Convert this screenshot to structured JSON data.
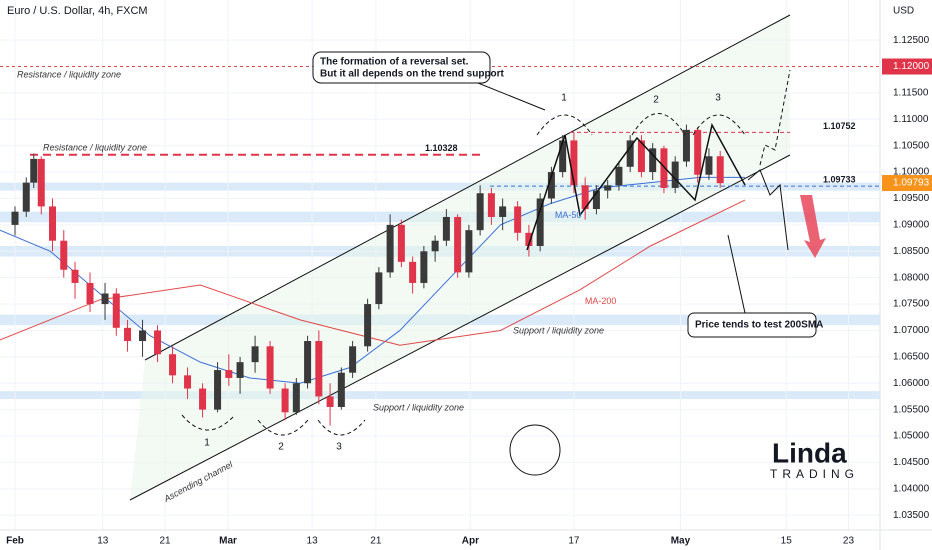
{
  "chart_data": {
    "type": "candlestick",
    "title": "Euro / U.S. Dollar, 4h, FXCM",
    "axis_label": "USD",
    "up_color": "#3a3a3a",
    "down_color": "#e0344a",
    "xlim": [
      -2,
      115.3
    ],
    "ylim": [
      1.0322,
      1.1326
    ],
    "xticks": [
      {
        "value": 0,
        "label": "Feb"
      },
      {
        "value": 11.7,
        "label": "13"
      },
      {
        "value": 20,
        "label": "21"
      },
      {
        "value": 28.4,
        "label": "Mar"
      },
      {
        "value": 39.6,
        "label": "13"
      },
      {
        "value": 48.1,
        "label": "21"
      },
      {
        "value": 60.7,
        "label": "Apr"
      },
      {
        "value": 74.5,
        "label": "17"
      },
      {
        "value": 88.7,
        "label": "May"
      },
      {
        "value": 102.8,
        "label": "15"
      },
      {
        "value": 111.1,
        "label": "23"
      }
    ],
    "yticks": [
      {
        "value": 1.035,
        "label": "1.03500"
      },
      {
        "value": 1.04,
        "label": "1.04000"
      },
      {
        "value": 1.045,
        "label": "1.04500"
      },
      {
        "value": 1.05,
        "label": "1.05000"
      },
      {
        "value": 1.055,
        "label": "1.05500"
      },
      {
        "value": 1.06,
        "label": "1.06000"
      },
      {
        "value": 1.065,
        "label": "1.06500"
      },
      {
        "value": 1.07,
        "label": "1.07000"
      },
      {
        "value": 1.075,
        "label": "1.07500"
      },
      {
        "value": 1.08,
        "label": "1.08000"
      },
      {
        "value": 1.085,
        "label": "1.08500"
      },
      {
        "value": 1.09,
        "label": "1.09000"
      },
      {
        "value": 1.095,
        "label": "1.09500"
      },
      {
        "value": 1.1,
        "label": "1.10000"
      },
      {
        "value": 1.105,
        "label": "1.10500"
      },
      {
        "value": 1.11,
        "label": "1.11000"
      },
      {
        "value": 1.115,
        "label": "1.11500"
      },
      {
        "value": 1.125,
        "label": "1.12500"
      }
    ],
    "candles": [
      {
        "x": 0,
        "open": 1.09,
        "high": 1.0935,
        "low": 1.088,
        "close": 1.0925
      },
      {
        "x": 1.5,
        "open": 1.0925,
        "high": 1.099,
        "low": 1.0915,
        "close": 1.098
      },
      {
        "x": 2.5,
        "open": 1.098,
        "high": 1.1035,
        "low": 1.097,
        "close": 1.1025
      },
      {
        "x": 3.5,
        "open": 1.1025,
        "high": 1.103,
        "low": 1.092,
        "close": 1.0935
      },
      {
        "x": 5,
        "open": 1.0935,
        "high": 1.095,
        "low": 1.085,
        "close": 1.087
      },
      {
        "x": 6.5,
        "open": 1.087,
        "high": 1.089,
        "low": 1.08,
        "close": 1.0815
      },
      {
        "x": 8,
        "open": 1.0815,
        "high": 1.083,
        "low": 1.076,
        "close": 1.079
      },
      {
        "x": 10,
        "open": 1.079,
        "high": 1.081,
        "low": 1.0735,
        "close": 1.075
      },
      {
        "x": 12,
        "open": 1.075,
        "high": 1.079,
        "low": 1.072,
        "close": 1.077
      },
      {
        "x": 13.5,
        "open": 1.077,
        "high": 1.078,
        "low": 1.069,
        "close": 1.0705
      },
      {
        "x": 15,
        "open": 1.0705,
        "high": 1.072,
        "low": 1.066,
        "close": 1.068
      },
      {
        "x": 17,
        "open": 1.068,
        "high": 1.072,
        "low": 1.065,
        "close": 1.07
      },
      {
        "x": 19,
        "open": 1.07,
        "high": 1.071,
        "low": 1.064,
        "close": 1.0655
      },
      {
        "x": 21,
        "open": 1.0655,
        "high": 1.067,
        "low": 1.06,
        "close": 1.0615
      },
      {
        "x": 23,
        "open": 1.0615,
        "high": 1.063,
        "low": 1.057,
        "close": 1.059
      },
      {
        "x": 25,
        "open": 1.059,
        "high": 1.06,
        "low": 1.0535,
        "close": 1.055
      },
      {
        "x": 27,
        "open": 1.055,
        "high": 1.064,
        "low": 1.0545,
        "close": 1.0625
      },
      {
        "x": 28.5,
        "open": 1.0625,
        "high": 1.0655,
        "low": 1.0595,
        "close": 1.061
      },
      {
        "x": 30,
        "open": 1.061,
        "high": 1.065,
        "low": 1.058,
        "close": 1.064
      },
      {
        "x": 32,
        "open": 1.064,
        "high": 1.069,
        "low": 1.062,
        "close": 1.067
      },
      {
        "x": 34,
        "open": 1.067,
        "high": 1.068,
        "low": 1.058,
        "close": 1.059
      },
      {
        "x": 36,
        "open": 1.059,
        "high": 1.06,
        "low": 1.053,
        "close": 1.0545
      },
      {
        "x": 37.5,
        "open": 1.0545,
        "high": 1.061,
        "low": 1.054,
        "close": 1.06
      },
      {
        "x": 39,
        "open": 1.06,
        "high": 1.069,
        "low": 1.059,
        "close": 1.068
      },
      {
        "x": 40.5,
        "open": 1.068,
        "high": 1.07,
        "low": 1.056,
        "close": 1.0575
      },
      {
        "x": 42,
        "open": 1.0575,
        "high": 1.06,
        "low": 1.052,
        "close": 1.0555
      },
      {
        "x": 43.5,
        "open": 1.0555,
        "high": 1.063,
        "low": 1.055,
        "close": 1.062
      },
      {
        "x": 45,
        "open": 1.062,
        "high": 1.068,
        "low": 1.061,
        "close": 1.067
      },
      {
        "x": 47,
        "open": 1.067,
        "high": 1.076,
        "low": 1.066,
        "close": 1.075
      },
      {
        "x": 48.5,
        "open": 1.075,
        "high": 1.082,
        "low": 1.074,
        "close": 1.081
      },
      {
        "x": 50,
        "open": 1.081,
        "high": 1.092,
        "low": 1.08,
        "close": 1.09
      },
      {
        "x": 51.5,
        "open": 1.09,
        "high": 1.091,
        "low": 1.082,
        "close": 1.083
      },
      {
        "x": 53,
        "open": 1.083,
        "high": 1.084,
        "low": 1.077,
        "close": 1.079
      },
      {
        "x": 54.5,
        "open": 1.079,
        "high": 1.086,
        "low": 1.078,
        "close": 1.085
      },
      {
        "x": 56,
        "open": 1.085,
        "high": 1.088,
        "low": 1.083,
        "close": 1.087
      },
      {
        "x": 57.5,
        "open": 1.087,
        "high": 1.093,
        "low": 1.086,
        "close": 1.0915
      },
      {
        "x": 59,
        "open": 1.0915,
        "high": 1.092,
        "low": 1.08,
        "close": 1.081
      },
      {
        "x": 60.5,
        "open": 1.081,
        "high": 1.09,
        "low": 1.08,
        "close": 1.089
      },
      {
        "x": 62,
        "open": 1.089,
        "high": 1.0975,
        "low": 1.088,
        "close": 1.096
      },
      {
        "x": 63.5,
        "open": 1.096,
        "high": 1.097,
        "low": 1.09,
        "close": 1.0915
      },
      {
        "x": 65,
        "open": 1.0915,
        "high": 1.095,
        "low": 1.089,
        "close": 1.0935
      },
      {
        "x": 67,
        "open": 1.0935,
        "high": 1.0945,
        "low": 1.087,
        "close": 1.0885
      },
      {
        "x": 68.5,
        "open": 1.0885,
        "high": 1.09,
        "low": 1.084,
        "close": 1.086
      },
      {
        "x": 70,
        "open": 1.086,
        "high": 1.096,
        "low": 1.085,
        "close": 1.095
      },
      {
        "x": 71.5,
        "open": 1.095,
        "high": 1.101,
        "low": 1.094,
        "close": 1.1
      },
      {
        "x": 73,
        "open": 1.1,
        "high": 1.107,
        "low": 1.099,
        "close": 1.106
      },
      {
        "x": 74.5,
        "open": 1.106,
        "high": 1.1075,
        "low": 1.096,
        "close": 1.0975
      },
      {
        "x": 76,
        "open": 1.0975,
        "high": 1.099,
        "low": 1.091,
        "close": 1.093
      },
      {
        "x": 77.5,
        "open": 1.093,
        "high": 1.0975,
        "low": 1.092,
        "close": 1.0965
      },
      {
        "x": 79,
        "open": 1.0965,
        "high": 1.0985,
        "low": 1.095,
        "close": 1.0975
      },
      {
        "x": 80.5,
        "open": 1.0975,
        "high": 1.102,
        "low": 1.0965,
        "close": 1.101
      },
      {
        "x": 82,
        "open": 1.101,
        "high": 1.107,
        "low": 1.1,
        "close": 1.106
      },
      {
        "x": 83.5,
        "open": 1.106,
        "high": 1.107,
        "low": 1.099,
        "close": 1.1
      },
      {
        "x": 85,
        "open": 1.1,
        "high": 1.1055,
        "low": 1.0985,
        "close": 1.1045
      },
      {
        "x": 86.5,
        "open": 1.1045,
        "high": 1.105,
        "low": 1.096,
        "close": 1.097
      },
      {
        "x": 88,
        "open": 1.097,
        "high": 1.103,
        "low": 1.096,
        "close": 1.102
      },
      {
        "x": 89.5,
        "open": 1.102,
        "high": 1.109,
        "low": 1.101,
        "close": 1.108
      },
      {
        "x": 91,
        "open": 1.108,
        "high": 1.1085,
        "low": 1.098,
        "close": 1.0995
      },
      {
        "x": 92.5,
        "open": 1.0995,
        "high": 1.1045,
        "low": 1.0985,
        "close": 1.103
      },
      {
        "x": 94,
        "open": 1.103,
        "high": 1.104,
        "low": 1.097,
        "close": 1.0979
      }
    ],
    "series": [
      {
        "name": "MA-50",
        "color": "#3b6fd6",
        "x": [
          -2,
          4.7,
          11.3,
          18,
          24.7,
          31.3,
          38,
          44.7,
          51.3,
          58,
          64.7,
          71.3,
          78,
          84.7,
          91.3,
          97.3
        ],
        "values": [
          1.089,
          1.085,
          1.077,
          1.069,
          1.064,
          1.061,
          1.06,
          1.063,
          1.07,
          1.08,
          1.09,
          1.094,
          1.097,
          1.098,
          1.099,
          1.099
        ]
      },
      {
        "name": "MA-200",
        "color": "#e04a4a",
        "x": [
          -2,
          11.3,
          24.7,
          38,
          51.3,
          64.7,
          75.3,
          84.7,
          97.3
        ],
        "values": [
          1.0682,
          1.0758,
          1.0786,
          1.072,
          1.0672,
          1.07,
          1.0777,
          1.086,
          1.0947
        ]
      }
    ],
    "levels": [
      {
        "value": 1.12,
        "label": "1.12000"
      },
      {
        "value": 1.10328,
        "label": "1.10328"
      },
      {
        "value": 1.10752,
        "label": "1.10752"
      },
      {
        "value": 1.09733,
        "label": "1.09733"
      }
    ],
    "last_price": {
      "value": 1.09793,
      "label": "1.09793"
    },
    "zones": [
      [
        1.0965,
        1.098
      ],
      [
        1.0905,
        1.0925
      ],
      [
        1.084,
        1.086
      ],
      [
        1.071,
        1.073
      ],
      [
        1.057,
        1.0585
      ]
    ],
    "annotations": {
      "resistance_top": "Resistance / liquidity zone",
      "resistance_mid": "Resistance / liquidity zone",
      "support_mid": "Support / liquidity zone",
      "support_low": "Support / liquidity zone",
      "callout_line1": "The formation of a reversal set.",
      "callout_line2": "But it all depends on the trend support",
      "price_note": "Price tends to test 200SMA",
      "channel": "Ascending channel",
      "low_marks": [
        "1",
        "2",
        "3"
      ],
      "top_marks": [
        "1",
        "2",
        "3"
      ]
    },
    "logo": {
      "name": "Linda",
      "sub": "TRADING"
    }
  }
}
